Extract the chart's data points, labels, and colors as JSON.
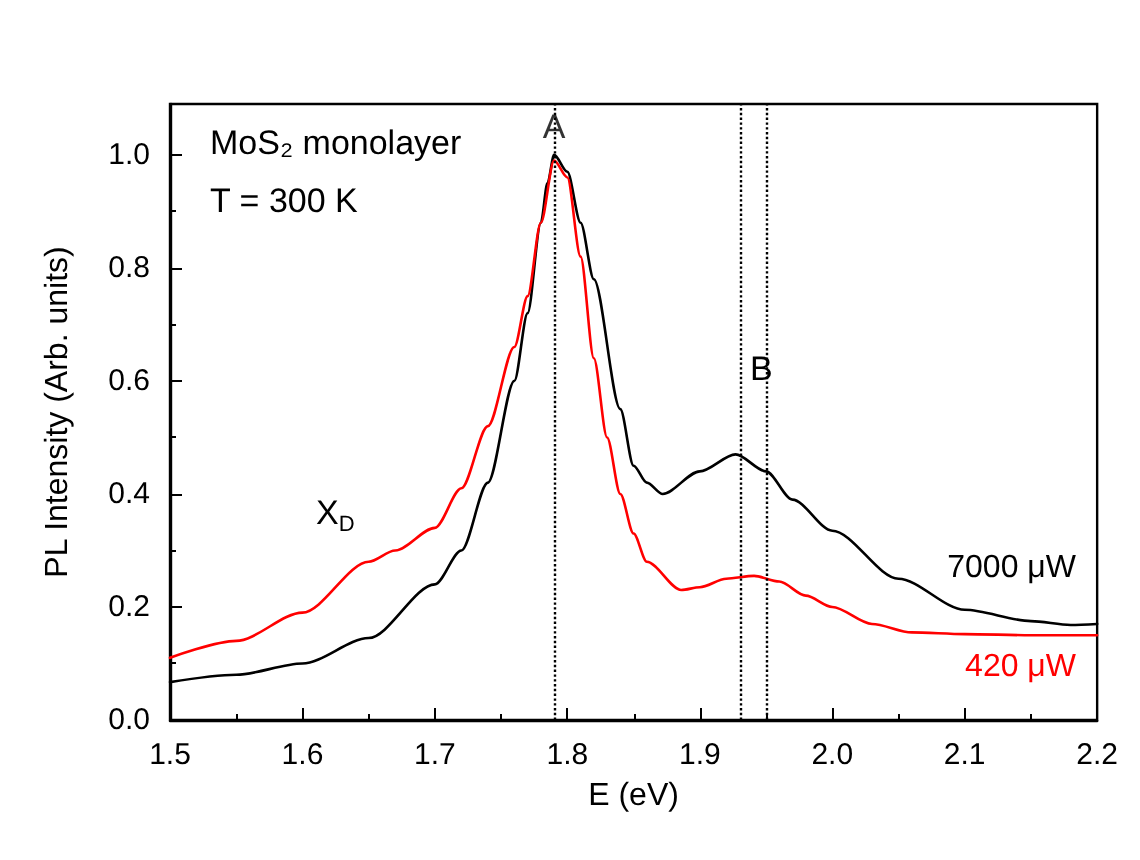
{
  "chart_data": {
    "type": "line",
    "title": "MoS₂ monolayer",
    "subtitle": "T = 300 K",
    "xlabel": "E (eV)",
    "ylabel": "PL Intensity (Arb. units)",
    "xlim": [
      1.5,
      2.2
    ],
    "xticks": [
      1.5,
      1.6,
      1.7,
      1.8,
      1.9,
      {
        "value": 2,
        "label": "2.0"
      },
      2.1,
      2.2
    ],
    "ylim": [
      0,
      1.09
    ],
    "yticks": [
      {
        "value": 0,
        "label": "0.0"
      },
      0.2,
      0.4,
      0.6,
      0.8,
      {
        "value": 1,
        "label": "1.0"
      }
    ],
    "grid": false,
    "legend": false,
    "marker": "none",
    "line_style": "solid",
    "series": [
      {
        "name": "7000 μW",
        "color": "#000000",
        "x": [
          1.5,
          1.55,
          1.6,
          1.65,
          1.7,
          1.72,
          1.74,
          1.76,
          1.77,
          1.78,
          1.785,
          1.79,
          1.8,
          1.81,
          1.82,
          1.84,
          1.85,
          1.86,
          1.872,
          1.9,
          1.927,
          1.95,
          1.97,
          2.0,
          2.05,
          2.1,
          2.15,
          2.18,
          2.2
        ],
        "values": [
          0.067,
          0.08,
          0.1,
          0.145,
          0.24,
          0.3,
          0.42,
          0.6,
          0.72,
          0.88,
          0.95,
          1.0,
          0.97,
          0.88,
          0.78,
          0.55,
          0.45,
          0.42,
          0.4,
          0.44,
          0.47,
          0.44,
          0.39,
          0.335,
          0.25,
          0.195,
          0.175,
          0.168,
          0.17
        ]
      },
      {
        "name": "420 μW",
        "color": "#ff0000",
        "x": [
          1.5,
          1.55,
          1.6,
          1.65,
          1.67,
          1.7,
          1.72,
          1.74,
          1.76,
          1.77,
          1.78,
          1.79,
          1.8,
          1.81,
          1.82,
          1.83,
          1.84,
          1.85,
          1.86,
          1.886,
          1.9,
          1.92,
          1.941,
          1.96,
          1.98,
          2.0,
          2.03,
          2.06,
          2.1,
          2.15,
          2.2
        ],
        "values": [
          0.11,
          0.14,
          0.19,
          0.28,
          0.3,
          0.34,
          0.41,
          0.52,
          0.66,
          0.75,
          0.88,
          0.99,
          0.96,
          0.82,
          0.64,
          0.5,
          0.4,
          0.33,
          0.28,
          0.23,
          0.235,
          0.25,
          0.255,
          0.245,
          0.22,
          0.2,
          0.17,
          0.155,
          0.152,
          0.15,
          0.15
        ]
      }
    ],
    "ref_lines": [
      {
        "axis": "x",
        "value": 1.79,
        "color": "#000000",
        "line_style": "dotted"
      },
      {
        "axis": "x",
        "value": 1.93,
        "color": "#000000",
        "line_style": "dotted"
      },
      {
        "axis": "x",
        "value": 1.95,
        "color": "#000000",
        "line_style": "dotted"
      }
    ],
    "annotations": [
      {
        "text": "A",
        "x": 1.79,
        "y": 1.05
      },
      "B",
      "X$_{D}$"
    ]
  }
}
